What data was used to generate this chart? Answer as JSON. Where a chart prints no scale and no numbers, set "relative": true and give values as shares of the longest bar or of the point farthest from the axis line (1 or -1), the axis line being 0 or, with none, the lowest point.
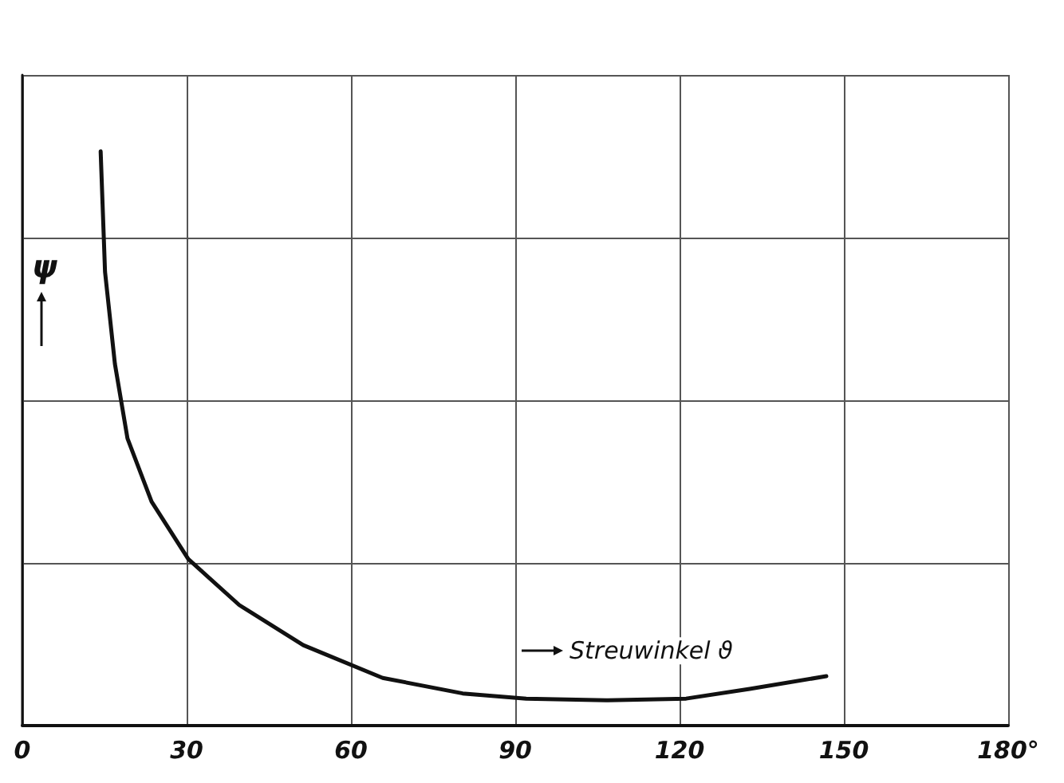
{
  "chart_data": {
    "type": "line",
    "relative": true,
    "xlabel": "Streuwinkel ϑ",
    "ylabel": "ψ",
    "x": [
      14.3,
      15.1,
      16.9,
      19.2,
      23.6,
      30.3,
      39.6,
      51.3,
      65.8,
      80.4,
      92.0,
      106.6,
      121.2,
      132.8,
      146.8
    ],
    "series": [
      {
        "color": "#111111",
        "values": [
          1,
          0.79,
          0.63,
          0.5,
          0.39,
          0.29,
          0.21,
          0.14,
          0.083,
          0.056,
          0.047,
          0.044,
          0.047,
          0.064,
          0.086
        ]
      }
    ],
    "xlim": [
      0,
      180
    ],
    "xticks": [
      0,
      30,
      60,
      90,
      120,
      150,
      {
        "value": 180,
        "label": "180°"
      }
    ],
    "grid": true,
    "marker": "none",
    "line_style": "solid"
  }
}
